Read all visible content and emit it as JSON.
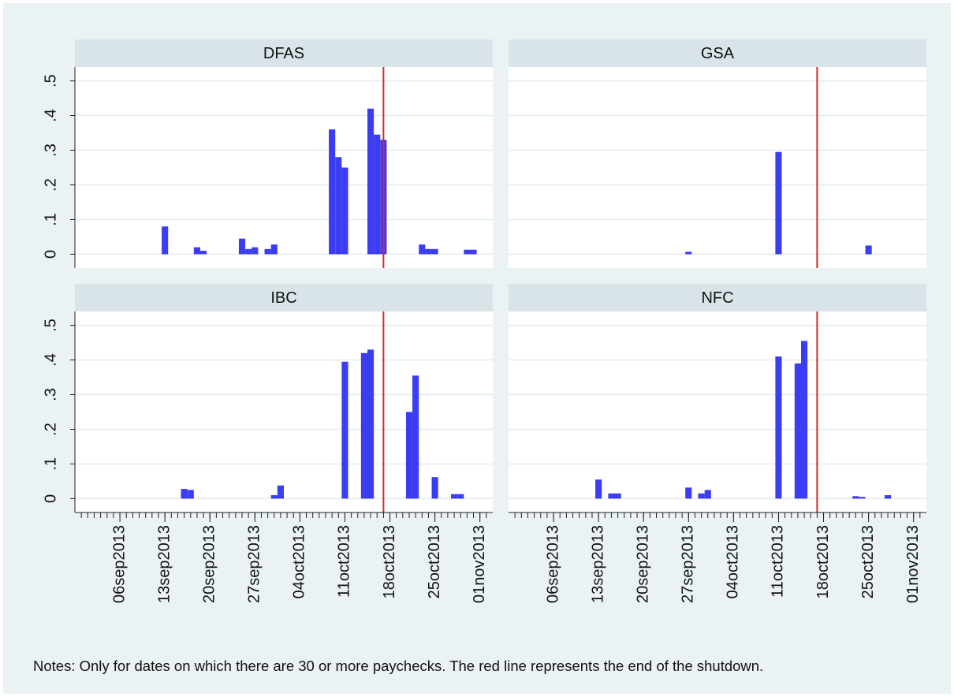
{
  "chart_data": [
    {
      "type": "bar",
      "title": "DFAS",
      "color": "#3c3cf2",
      "vline": "2013-10-17",
      "vline_color": "#d42a2a",
      "x": [
        "2013-09-13",
        "2013-09-18",
        "2013-09-19",
        "2013-09-25",
        "2013-09-26",
        "2013-09-27",
        "2013-09-29",
        "2013-09-30",
        "2013-10-09",
        "2013-10-10",
        "2013-10-11",
        "2013-10-15",
        "2013-10-16",
        "2013-10-17",
        "2013-10-23",
        "2013-10-24",
        "2013-10-25",
        "2013-10-30",
        "2013-10-31"
      ],
      "values": [
        0.08,
        0.02,
        0.01,
        0.045,
        0.015,
        0.02,
        0.015,
        0.028,
        0.36,
        0.28,
        0.25,
        0.42,
        0.345,
        0.33,
        0.028,
        0.015,
        0.015,
        0.013,
        0.013
      ],
      "xlim": [
        "2013-08-30",
        "2013-11-03"
      ],
      "ylim": [
        -0.04,
        0.54
      ],
      "yticks": [
        0,
        {
          "value": 0.1,
          "label": ".1"
        },
        {
          "value": 0.2,
          "label": ".2"
        },
        {
          "value": 0.3,
          "label": ".3"
        },
        {
          "value": 0.4,
          "label": ".4"
        },
        {
          "value": 0.5,
          "label": ".5"
        }
      ],
      "grid": true
    },
    {
      "type": "bar",
      "title": "GSA",
      "color": "#3c3cf2",
      "vline": "2013-10-17",
      "vline_color": "#d42a2a",
      "x": [
        "2013-09-27",
        "2013-10-11",
        "2013-10-25"
      ],
      "values": [
        0.007,
        0.295,
        0.025
      ],
      "xlim": [
        "2013-08-30",
        "2013-11-03"
      ],
      "ylim": [
        -0.04,
        0.54
      ],
      "grid": true
    },
    {
      "type": "bar",
      "title": "IBC",
      "color": "#3c3cf2",
      "vline": "2013-10-17",
      "vline_color": "#d42a2a",
      "x": [
        "2013-09-16",
        "2013-09-17",
        "2013-09-30",
        "2013-10-01",
        "2013-10-11",
        "2013-10-14",
        "2013-10-15",
        "2013-10-21",
        "2013-10-22",
        "2013-10-25",
        "2013-10-28",
        "2013-10-29"
      ],
      "values": [
        0.028,
        0.025,
        0.01,
        0.038,
        0.395,
        0.42,
        0.43,
        0.25,
        0.355,
        0.062,
        0.013,
        0.013
      ],
      "xlim": [
        "2013-08-30",
        "2013-11-03"
      ],
      "ylim": [
        -0.04,
        0.54
      ],
      "yticks": [
        0,
        {
          "value": 0.1,
          "label": ".1"
        },
        {
          "value": 0.2,
          "label": ".2"
        },
        {
          "value": 0.3,
          "label": ".3"
        },
        {
          "value": 0.4,
          "label": ".4"
        },
        {
          "value": 0.5,
          "label": ".5"
        }
      ],
      "grid": true,
      "xticks": [
        {
          "value": "2013-09-06",
          "label": "06sep2013"
        },
        {
          "value": "2013-09-13",
          "label": "13sep2013"
        },
        {
          "value": "2013-09-20",
          "label": "20sep2013"
        },
        {
          "value": "2013-09-27",
          "label": "27sep2013"
        },
        {
          "value": "2013-10-04",
          "label": "04oct2013"
        },
        {
          "value": "2013-10-11",
          "label": "11oct2013"
        },
        {
          "value": "2013-10-18",
          "label": "18oct2013"
        },
        {
          "value": "2013-10-25",
          "label": "25oct2013"
        },
        {
          "value": "2013-11-01",
          "label": "01nov2013"
        }
      ]
    },
    {
      "type": "bar",
      "title": "NFC",
      "color": "#3c3cf2",
      "vline": "2013-10-17",
      "vline_color": "#d42a2a",
      "x": [
        "2013-09-13",
        "2013-09-15",
        "2013-09-16",
        "2013-09-27",
        "2013-09-29",
        "2013-09-30",
        "2013-10-11",
        "2013-10-14",
        "2013-10-15",
        "2013-10-23",
        "2013-10-24",
        "2013-10-28"
      ],
      "values": [
        0.055,
        0.015,
        0.015,
        0.032,
        0.015,
        0.025,
        0.41,
        0.39,
        0.455,
        0.007,
        0.005,
        0.01
      ],
      "xlim": [
        "2013-08-30",
        "2013-11-03"
      ],
      "ylim": [
        -0.04,
        0.54
      ],
      "grid": true,
      "xticks": [
        {
          "value": "2013-09-06",
          "label": "06sep2013"
        },
        {
          "value": "2013-09-13",
          "label": "13sep2013"
        },
        {
          "value": "2013-09-20",
          "label": "20sep2013"
        },
        {
          "value": "2013-09-27",
          "label": "27sep2013"
        },
        {
          "value": "2013-10-04",
          "label": "04oct2013"
        },
        {
          "value": "2013-10-11",
          "label": "11oct2013"
        },
        {
          "value": "2013-10-18",
          "label": "18oct2013"
        },
        {
          "value": "2013-10-25",
          "label": "25oct2013"
        },
        {
          "value": "2013-11-01",
          "label": "01nov2013"
        }
      ]
    }
  ],
  "notes": "Notes: Only for dates on which there are 30 or more paychecks. The red line represents the end of the shutdown."
}
